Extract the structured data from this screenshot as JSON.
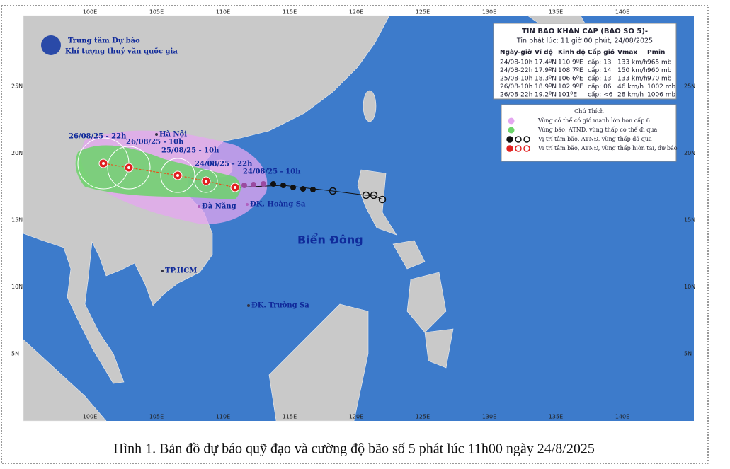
{
  "header": {
    "org_line1": "Trung tâm Dự báo",
    "org_line2": "Khí tượng thuỷ văn quốc gia"
  },
  "bulletin": {
    "title": "TIN BAO KHAN CAP (BAO SO 5)-",
    "issued": "Tin phát lúc: 11 giờ 00 phút, 24/08/2025",
    "columns": [
      "Ngày-giờ",
      "Vĩ độ",
      "Kinh độ",
      "Cấp gió",
      "Vmax",
      "Pmin"
    ],
    "rows": [
      [
        "24/08-10h",
        "17.4ºN",
        "110.9ºE",
        "cấp: 13",
        "133 km/h",
        "965 mb"
      ],
      [
        "24/08-22h",
        "17.9ºN",
        "108.7ºE",
        "cấp: 14",
        "150 km/h",
        "960 mb"
      ],
      [
        "25/08-10h",
        "18.3ºN",
        "106.6ºE",
        "cấp: 13",
        "133 km/h",
        "970 mb"
      ],
      [
        "26/08-10h",
        "18.9ºN",
        "102.9ºE",
        "cấp: 06",
        "46 km/h",
        "1002 mb"
      ],
      [
        "26/08-22h",
        "19.2ºN",
        "101ºE",
        "cấp: <6",
        "28 km/h",
        "1006 mb"
      ]
    ]
  },
  "legend": {
    "title": "Chú Thích",
    "items": [
      "Vùng có thể có gió mạnh lớn hơn cấp 6",
      "Vùng bão, ATNĐ, vùng thấp có thể đi qua",
      "Vị trí tâm bão, ATNĐ, vùng thấp đã qua",
      "Vị trí tâm bão, ATNĐ, vùng thấp hiện tại, dự báo"
    ]
  },
  "map": {
    "forecast_labels": [
      "26/08/25 - 22h",
      "26/08/25 - 10h",
      "25/08/25 - 10h",
      "24/08/25 - 22h",
      "24/08/25 - 10h"
    ],
    "places": [
      "Hà Nội",
      "Đà Nẵng",
      "ĐK. Hoàng Sa",
      "TP.HCM",
      "ĐK. Trường Sa"
    ],
    "sea_label": "Biển Đông",
    "lon_labels": [
      "100E",
      "105E",
      "110E",
      "115E",
      "120E",
      "125E",
      "130E",
      "135E",
      "140E"
    ],
    "lat_labels": [
      "25N",
      "20N",
      "15N",
      "10N",
      "5N"
    ]
  },
  "caption": "Hình 1. Bản đồ dự báo quỹ đạo và cường độ bão số 5 phát lúc 11h00 ngày 24/8/2025"
}
